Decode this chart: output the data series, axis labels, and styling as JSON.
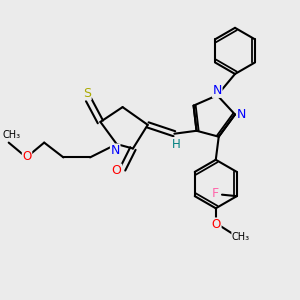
{
  "bg_color": "#ebebeb",
  "bond_color": "#000000",
  "atom_colors": {
    "N": "#0000ff",
    "O": "#ff0000",
    "S": "#aaaa00",
    "F": "#ff66aa",
    "H": "#008080"
  },
  "lw": 1.5,
  "fs": 8.5
}
